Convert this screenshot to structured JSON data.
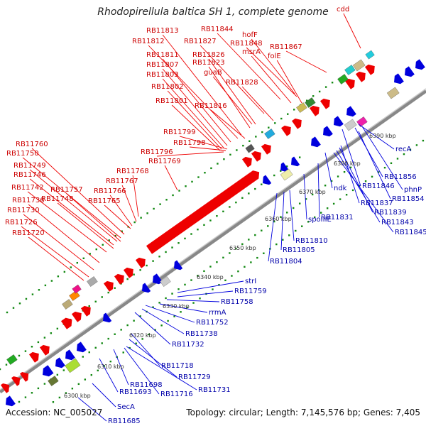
{
  "title": "Rhodopirellula baltica SH 1, complete genome",
  "accession": "Accession: NC_005027",
  "summary": "Topology: circular; Length: 7,145,576 bp; Genes: 7,405",
  "colors": {
    "forward": "#ee0000",
    "reverse": "#0000dd",
    "backbone": "#999999",
    "dots": "#118811"
  },
  "kbp_ticks": [
    "6300 kbp",
    "6310 kbp",
    "6320 kbp",
    "6330 kbp",
    "6340 kbp",
    "6350 kbp",
    "6360 kbp",
    "6370 kbp",
    "6380 kbp",
    "6390 kbp"
  ],
  "red_labels": [
    "cdd",
    "RB11813",
    "RB11844",
    "hofF",
    "RB11812",
    "RB11827",
    "RB11848",
    "msrA",
    "RB11867",
    "RB11811",
    "RB11826",
    "folE",
    "RB11807",
    "RB11823",
    "RB11803",
    "guaB",
    "RB11828",
    "RB11802",
    "RB11801",
    "RB11816",
    "RB11799",
    "RB11798",
    "RB11796",
    "RB11769",
    "RB11760",
    "RB11750",
    "RB11749",
    "RB11768",
    "RB11746",
    "RB11767",
    "RB11742",
    "RB11757",
    "RB11766",
    "RB11748",
    "RB11765",
    "RB11736",
    "RB11730",
    "RB11726",
    "RB11720"
  ],
  "blue_labels": [
    "recA",
    "RB11856",
    "phnP",
    "RB11846",
    "RB11854",
    "ndk",
    "RB11837",
    "RB11839",
    "RB11831",
    "RB11843",
    "RB11845",
    "spoIIIE",
    "RB11810",
    "RB11805",
    "RB11804",
    "strI",
    "RB11759",
    "RB11758",
    "rrmA",
    "RB11752",
    "RB11738",
    "RB11732",
    "RB11718",
    "RB11729",
    "RB11731",
    "RB11698",
    "RB11716",
    "RB11693",
    "SecA",
    "RB11685"
  ]
}
